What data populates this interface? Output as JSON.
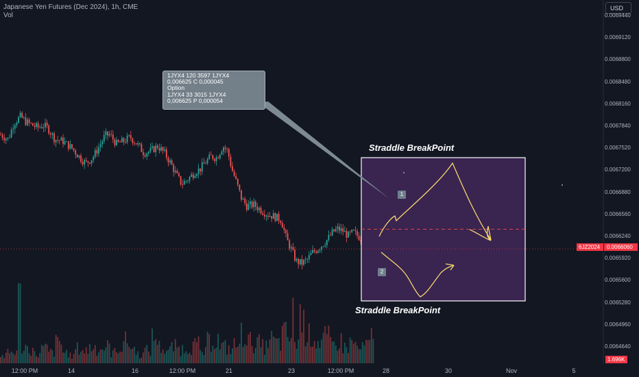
{
  "header": {
    "title": "Japanese Yen Futures (Dec 2024), 1h, CME",
    "vol_label": "Vol"
  },
  "currency_button": "USD",
  "annotation": {
    "lines": [
      "1JYX4 120 3597 1JYX4",
      "0,006625 C 0,000045",
      "Option",
      "1JYX4 33 3015 1JYX4",
      "0,006625 P 0,000054"
    ],
    "title_top": "Straddle BreakPoint",
    "title_bottom": "Straddle BreakPoint",
    "marker_1": "1",
    "marker_2": "2"
  },
  "price_tag": {
    "symbol": "6JZ2024",
    "value": "0.0066060"
  },
  "volume_tag": "1.696K",
  "colors": {
    "bg": "#131722",
    "up": "#26a69a",
    "down": "#ef5350",
    "box": "#3a2450",
    "path": "#f5d76e"
  },
  "chart_data": {
    "type": "candlestick",
    "title": "Japanese Yen Futures (Dec 2024), 1h, CME",
    "y_ticks": [
      "0.0069440",
      "0.0069120",
      "0.0068800",
      "0.0068480",
      "0.0068160",
      "0.0067840",
      "0.0067520",
      "0.0067200",
      "0.0066880",
      "0.0066560",
      "0.0066240",
      "0.0065920",
      "0.0065600",
      "0.0065280",
      "0.0064960",
      "0.0064640"
    ],
    "x_ticks": [
      "12:00 PM",
      "14",
      "16",
      "12:00 PM",
      "21",
      "23",
      "12:00 PM",
      "28",
      "30",
      "Nov",
      "5"
    ],
    "ylim": [
      0.006445,
      0.00696
    ],
    "last_price": 0.006606,
    "breakeven_price": 0.0066345,
    "close_path": [
      [
        0,
        0.006772
      ],
      [
        12,
        0.006765
      ],
      [
        20,
        0.006788
      ],
      [
        30,
        0.006798
      ],
      [
        38,
        0.00679
      ],
      [
        48,
        0.006785
      ],
      [
        55,
        0.006782
      ],
      [
        63,
        0.006785
      ],
      [
        70,
        0.006781
      ],
      [
        80,
        0.006765
      ],
      [
        92,
        0.006762
      ],
      [
        105,
        0.006752
      ],
      [
        118,
        0.006737
      ],
      [
        125,
        0.00673
      ],
      [
        135,
        0.006738
      ],
      [
        145,
        0.006755
      ],
      [
        153,
        0.00677
      ],
      [
        160,
        0.006772
      ],
      [
        170,
        0.006758
      ],
      [
        180,
        0.006762
      ],
      [
        190,
        0.006768
      ],
      [
        200,
        0.006758
      ],
      [
        210,
        0.006745
      ],
      [
        220,
        0.006748
      ],
      [
        230,
        0.006755
      ],
      [
        240,
        0.006745
      ],
      [
        250,
        0.006728
      ],
      [
        258,
        0.006712
      ],
      [
        265,
        0.0067
      ],
      [
        275,
        0.006708
      ],
      [
        285,
        0.006718
      ],
      [
        292,
        0.006722
      ],
      [
        300,
        0.006732
      ],
      [
        308,
        0.00674
      ],
      [
        316,
        0.006738
      ],
      [
        325,
        0.006755
      ],
      [
        332,
        0.006748
      ],
      [
        338,
        0.006722
      ],
      [
        345,
        0.006702
      ],
      [
        352,
        0.00668
      ],
      [
        360,
        0.006668
      ],
      [
        370,
        0.00667
      ],
      [
        380,
        0.006663
      ],
      [
        390,
        0.006656
      ],
      [
        400,
        0.006653
      ],
      [
        410,
        0.006648
      ],
      [
        418,
        0.00662
      ],
      [
        425,
        0.006605
      ],
      [
        432,
        0.006588
      ],
      [
        440,
        0.006585
      ],
      [
        448,
        0.00659
      ],
      [
        455,
        0.0066
      ],
      [
        462,
        0.006605
      ],
      [
        470,
        0.006612
      ],
      [
        478,
        0.00662
      ],
      [
        485,
        0.00663
      ],
      [
        492,
        0.006635
      ],
      [
        500,
        0.006632
      ],
      [
        508,
        0.006625
      ],
      [
        515,
        0.00663
      ],
      [
        522,
        0.006625
      ],
      [
        530,
        0.006618
      ],
      [
        538,
        0.006612
      ],
      [
        547,
        0.006606
      ]
    ],
    "volume": [
      [
        0,
        4
      ],
      [
        10,
        6
      ],
      [
        20,
        7
      ],
      [
        25,
        34
      ],
      [
        30,
        9
      ],
      [
        40,
        8
      ],
      [
        50,
        5
      ],
      [
        60,
        8
      ],
      [
        70,
        6
      ],
      [
        80,
        11
      ],
      [
        90,
        6
      ],
      [
        100,
        4
      ],
      [
        110,
        8
      ],
      [
        120,
        7
      ],
      [
        130,
        9
      ],
      [
        140,
        8
      ],
      [
        150,
        9
      ],
      [
        160,
        6
      ],
      [
        170,
        9
      ],
      [
        180,
        12
      ],
      [
        190,
        8
      ],
      [
        200,
        5
      ],
      [
        210,
        7
      ],
      [
        220,
        14
      ],
      [
        230,
        9
      ],
      [
        240,
        7
      ],
      [
        250,
        9
      ],
      [
        260,
        8
      ],
      [
        270,
        9
      ],
      [
        280,
        10
      ],
      [
        290,
        6
      ],
      [
        300,
        12
      ],
      [
        310,
        13
      ],
      [
        320,
        9
      ],
      [
        330,
        8
      ],
      [
        340,
        10
      ],
      [
        350,
        16
      ],
      [
        360,
        12
      ],
      [
        370,
        11
      ],
      [
        380,
        9
      ],
      [
        390,
        13
      ],
      [
        400,
        11
      ],
      [
        410,
        16
      ],
      [
        420,
        14
      ],
      [
        425,
        26
      ],
      [
        430,
        12
      ],
      [
        437,
        30
      ],
      [
        440,
        22
      ],
      [
        445,
        18
      ],
      [
        450,
        15
      ],
      [
        460,
        12
      ],
      [
        470,
        14
      ],
      [
        480,
        10
      ],
      [
        490,
        12
      ],
      [
        500,
        9
      ],
      [
        510,
        11
      ],
      [
        520,
        8
      ],
      [
        530,
        10
      ],
      [
        540,
        14
      ],
      [
        547,
        7
      ]
    ]
  }
}
